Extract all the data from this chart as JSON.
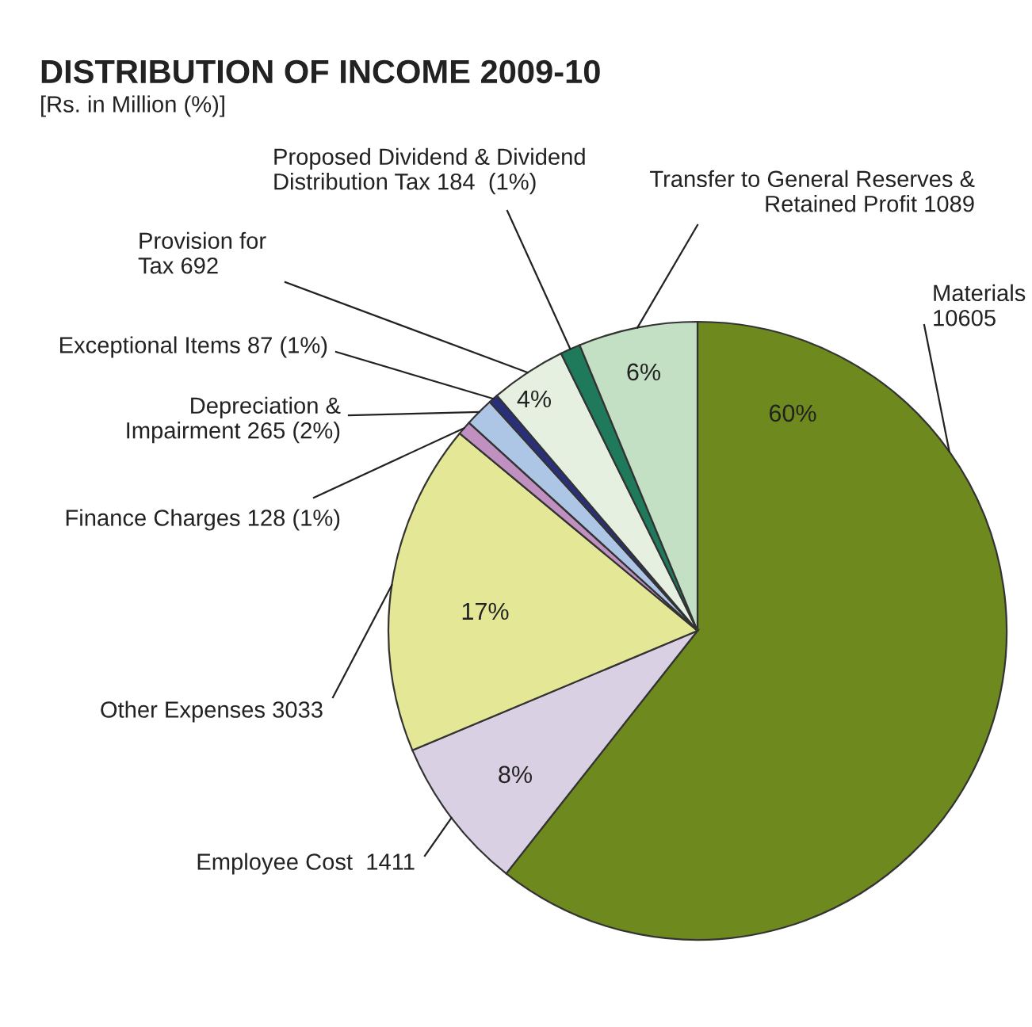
{
  "chart_data": {
    "type": "pie",
    "title": "DISTRIBUTION OF INCOME 2009-10",
    "subtitle": "[Rs. in Million (%)]",
    "categories": [
      "Materials\n10605",
      "Employee Cost  1411",
      "Other Expenses 3033",
      "Finance Charges 128 (1%)",
      "Depreciation &\nImpairment 265 (2%)",
      "Exceptional Items 87 (1%)",
      "Provision for\nTax 692",
      "Proposed Dividend & Dividend\nDistribution Tax 184  (1%)",
      "Transfer to General Reserves &\nRetained Profit 1089"
    ],
    "values": [
      10605,
      1411,
      3033,
      128,
      265,
      87,
      692,
      184,
      1089
    ],
    "colors": [
      "#6e8a1f",
      "#d9d0e4",
      "#e4e896",
      "#c090c0",
      "#aec6e6",
      "#2a2f7a",
      "#e6f0e0",
      "#1e7a5a",
      "#c4e0c4"
    ],
    "annotations": [
      "60%",
      "8%",
      "17%",
      "4%",
      "6%"
    ],
    "legend": false
  }
}
